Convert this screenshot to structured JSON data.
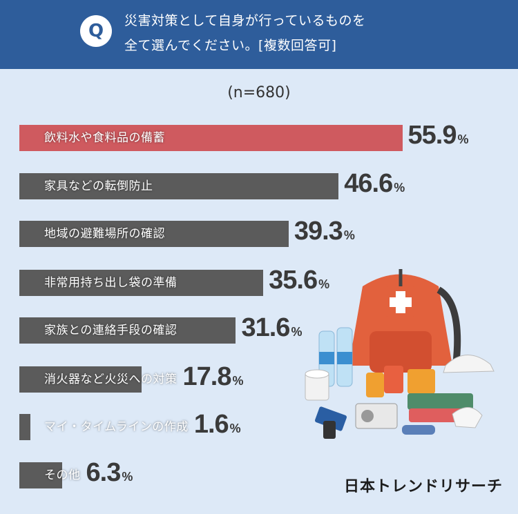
{
  "header": {
    "q_badge": "Q",
    "question_line1": "災害対策として自身が行っているものを",
    "question_line2": "全て選んでください。[複数回答可]"
  },
  "sample_note": "(n=680)",
  "logo": "日本トレンドリサーチ",
  "colors": {
    "header": "#2e5d9b",
    "background": "#dde9f7",
    "highlight_bar": "#cf5a5f",
    "bar": "#5b5b5b"
  },
  "chart_data": {
    "type": "bar",
    "orientation": "horizontal",
    "categories": [
      "飲料水や食料品の備蓄",
      "家具などの転倒防止",
      "地域の避難場所の確認",
      "非常用持ち出し袋の準備",
      "家族との連絡手段の確認",
      "消火器など火災への対策",
      "マイ・タイムラインの作成",
      "その他"
    ],
    "values": [
      55.9,
      46.6,
      39.3,
      35.6,
      31.6,
      17.8,
      1.6,
      6.3
    ],
    "value_labels": [
      "55.9",
      "46.6",
      "39.3",
      "35.6",
      "31.6",
      "17.8",
      "1.6",
      "6.3"
    ],
    "unit": "%",
    "highlight_index": 0
  }
}
